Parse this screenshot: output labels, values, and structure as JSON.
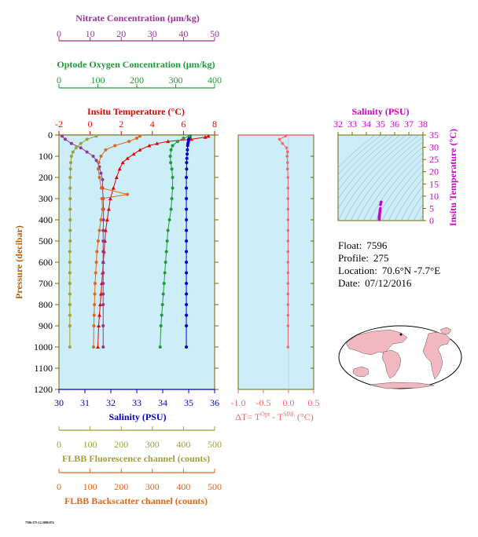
{
  "footer_code": "7596-275-12.3080.874",
  "float_info": {
    "float_label": "Float:",
    "float_value": "7596",
    "profile_label": "Profile:",
    "profile_value": "275",
    "location_label": "Location:",
    "location_value": "70.6°N  -7.7°E",
    "date_label": "Date:",
    "date_value": "07/12/2016"
  },
  "colors": {
    "plot_bg": "#cdeef8",
    "temperature": "#e60000",
    "salinity": "#0000cc",
    "nitrate": "#993399",
    "oxygen": "#1f9a3a",
    "fluorescence": "#9ea03a",
    "backscatter": "#e0661a",
    "delta_t": "#f06a6a",
    "ts_salinity": "#cc00cc",
    "map_land": "#f2b8c0",
    "map_ocean": "#ffffff"
  },
  "chart_data": [
    {
      "id": "main_profile",
      "type": "line",
      "ylabel": "Pressure (decibar)",
      "ylim": [
        1200,
        0
      ],
      "yticks": [
        "0",
        "100",
        "200",
        "300",
        "400",
        "500",
        "600",
        "700",
        "800",
        "900",
        "1000",
        "1100",
        "1200"
      ],
      "grid": false,
      "axes": {
        "temperature": {
          "label": "Insitu Temperature (°C)",
          "range": [
            -2,
            8
          ],
          "ticks": [
            "-2",
            "0",
            "2",
            "4",
            "6",
            "8"
          ]
        },
        "salinity": {
          "label": "Salinity (PSU)",
          "range": [
            30,
            36
          ],
          "ticks": [
            "30",
            "31",
            "32",
            "33",
            "34",
            "35",
            "36"
          ]
        },
        "nitrate": {
          "label": "Nitrate Concentration (μm/kg)",
          "range": [
            0,
            50
          ],
          "ticks": [
            "0",
            "10",
            "20",
            "30",
            "40",
            "50"
          ]
        },
        "oxygen": {
          "label": "Optode Oxygen Concentration (μm/kg)",
          "range": [
            0,
            400
          ],
          "ticks": [
            "0",
            "100",
            "200",
            "300",
            "400"
          ]
        },
        "fluorescence": {
          "label": "FLBB Fluorescence channel (counts)",
          "range": [
            0,
            500
          ],
          "ticks": [
            "0",
            "100",
            "200",
            "300",
            "400",
            "500"
          ]
        },
        "backscatter": {
          "label": "FLBB Backscatter channel (counts)",
          "range": [
            0,
            500
          ],
          "ticks": [
            "0",
            "100",
            "200",
            "300",
            "400",
            "500"
          ]
        }
      },
      "series": [
        {
          "key": "temperature",
          "axis": "temperature",
          "marker": "triangle",
          "x": [
            7.6,
            7.4,
            6.5,
            5.0,
            4.3,
            3.8,
            3.2,
            2.8,
            2.4,
            2.1,
            1.9,
            1.7,
            1.5,
            1.3,
            1.2,
            1.1,
            1.0,
            0.95,
            0.9,
            0.85,
            0.8,
            0.75,
            0.7,
            0.65,
            0.6,
            0.55,
            0.5
          ],
          "y": [
            5,
            10,
            20,
            30,
            40,
            50,
            70,
            90,
            110,
            130,
            160,
            200,
            250,
            300,
            350,
            400,
            450,
            500,
            550,
            600,
            650,
            700,
            750,
            800,
            850,
            900,
            1000
          ]
        },
        {
          "key": "salinity",
          "axis": "salinity",
          "marker": "circle",
          "x": [
            35.05,
            35.03,
            35.0,
            34.99,
            34.97,
            34.96,
            34.95,
            34.94,
            34.93,
            34.92,
            34.92,
            34.91,
            34.91,
            34.91,
            34.91,
            34.91,
            34.91,
            34.91,
            34.91,
            34.91,
            34.91,
            34.91,
            34.91,
            34.91,
            34.91,
            34.91,
            34.91
          ],
          "y": [
            5,
            10,
            20,
            30,
            40,
            50,
            70,
            90,
            110,
            130,
            160,
            200,
            250,
            300,
            350,
            400,
            450,
            500,
            550,
            600,
            650,
            700,
            750,
            800,
            850,
            900,
            1000
          ]
        },
        {
          "key": "nitrate",
          "axis": "nitrate",
          "marker": "circle",
          "x": [
            1,
            2,
            4,
            7,
            9,
            11,
            12,
            13,
            13.5,
            14,
            14,
            14.2,
            14.3,
            14.3,
            14.2,
            14.2,
            14.2,
            14.2,
            14.2,
            14.2,
            14.2,
            14.2,
            14.2,
            14.2
          ],
          "y": [
            5,
            20,
            40,
            60,
            80,
            100,
            120,
            150,
            180,
            210,
            250,
            300,
            350,
            400,
            450,
            500,
            550,
            600,
            650,
            700,
            750,
            800,
            900,
            1000
          ]
        },
        {
          "key": "oxygen",
          "axis": "oxygen",
          "marker": "circle",
          "x": [
            335,
            320,
            305,
            292,
            288,
            286,
            287,
            290,
            292,
            292,
            290,
            288,
            284,
            280,
            278,
            276,
            274,
            272,
            270,
            268,
            266,
            264,
            262,
            260
          ],
          "y": [
            5,
            15,
            30,
            50,
            70,
            100,
            130,
            160,
            200,
            250,
            300,
            350,
            400,
            450,
            500,
            550,
            600,
            650,
            700,
            750,
            800,
            850,
            900,
            1000
          ]
        },
        {
          "key": "fluorescence",
          "axis": "fluorescence",
          "marker": "circle",
          "x": [
            120,
            90,
            70,
            55,
            45,
            40,
            38,
            37,
            36,
            36,
            36,
            36,
            36,
            36,
            36,
            35,
            35,
            35,
            35,
            35,
            35,
            35,
            35,
            35
          ],
          "y": [
            5,
            20,
            40,
            60,
            80,
            100,
            130,
            160,
            200,
            250,
            300,
            350,
            400,
            450,
            500,
            550,
            600,
            650,
            700,
            750,
            800,
            850,
            900,
            1000
          ]
        },
        {
          "key": "backscatter",
          "axis": "backscatter",
          "marker": "circle",
          "x": [
            260,
            250,
            225,
            180,
            150,
            135,
            128,
            126,
            130,
            136,
            220,
            138,
            140,
            135,
            130,
            126,
            122,
            120,
            118,
            116,
            115,
            114,
            113,
            112,
            111
          ],
          "y": [
            5,
            15,
            30,
            50,
            70,
            100,
            130,
            160,
            200,
            250,
            280,
            300,
            350,
            400,
            450,
            500,
            550,
            600,
            650,
            700,
            750,
            800,
            850,
            900,
            1000
          ]
        }
      ]
    },
    {
      "id": "delta_t",
      "type": "line",
      "xlabel": "ΔT= T",
      "xlabel_sup1": "Opt",
      "xlabel_mid": " - T",
      "xlabel_sup2": "SBE",
      "xlabel_unit": " (°C)",
      "xlim": [
        -1.0,
        0.5
      ],
      "xticks": [
        "-1.0",
        "-0.5",
        "0.0",
        "0.5"
      ],
      "ylim": [
        1200,
        0
      ],
      "series": [
        {
          "key": "delta_t",
          "x": [
            -0.06,
            -0.18,
            -0.12,
            -0.04,
            -0.02,
            -0.03,
            -0.02,
            -0.02,
            -0.01,
            -0.01,
            -0.01,
            -0.01,
            -0.01,
            -0.01,
            -0.01,
            -0.01,
            -0.01,
            -0.01,
            -0.01,
            -0.01,
            -0.01,
            -0.01,
            -0.01,
            -0.01
          ],
          "y": [
            5,
            20,
            40,
            60,
            80,
            100,
            130,
            160,
            200,
            250,
            300,
            350,
            400,
            450,
            500,
            550,
            600,
            650,
            700,
            750,
            800,
            850,
            900,
            1000
          ]
        }
      ]
    },
    {
      "id": "ts_diagram",
      "type": "scatter",
      "xlabel": "Salinity (PSU)",
      "ylabel": "Insitu Temperature (°C)",
      "xlim": [
        32,
        38
      ],
      "ylim": [
        0,
        35
      ],
      "xticks": [
        "32",
        "33",
        "34",
        "35",
        "36",
        "37",
        "38"
      ],
      "yticks": [
        "0",
        "5",
        "10",
        "15",
        "20",
        "25",
        "30",
        "35"
      ],
      "series": [
        {
          "key": "ts",
          "x": [
            35.05,
            35.03,
            35.0,
            34.99,
            34.97,
            34.96,
            34.95,
            34.94,
            34.93,
            34.92,
            34.92,
            34.91,
            34.91,
            34.91,
            34.91,
            34.91,
            34.91
          ],
          "y": [
            7.6,
            7.4,
            6.5,
            5.0,
            4.3,
            3.8,
            3.2,
            2.8,
            2.4,
            2.1,
            1.9,
            1.7,
            1.5,
            1.3,
            1.1,
            0.9,
            0.5
          ]
        }
      ]
    }
  ]
}
